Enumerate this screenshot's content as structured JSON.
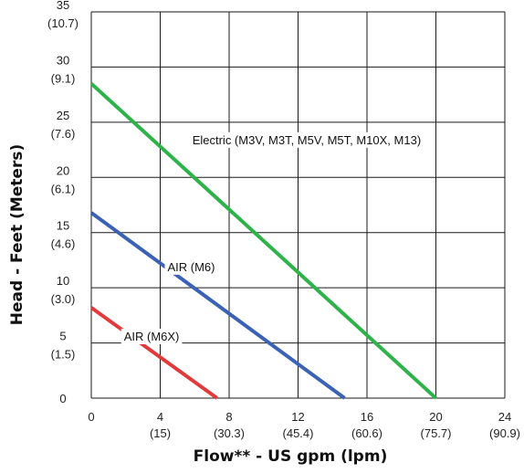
{
  "chart_data": {
    "type": "line",
    "title": "",
    "xlabel": "Flow** - US gpm (lpm)",
    "ylabel": "Head - Feet (Meters)",
    "xlim": [
      0,
      24
    ],
    "ylim": [
      0,
      35
    ],
    "grid": true,
    "x_ticks": [
      {
        "value": 0,
        "primary": "0",
        "secondary": ""
      },
      {
        "value": 4,
        "primary": "4",
        "secondary": "(15)"
      },
      {
        "value": 8,
        "primary": "8",
        "secondary": "(30.3)"
      },
      {
        "value": 12,
        "primary": "12",
        "secondary": "(45.4)"
      },
      {
        "value": 16,
        "primary": "16",
        "secondary": "(60.6)"
      },
      {
        "value": 20,
        "primary": "20",
        "secondary": "(75.7)"
      },
      {
        "value": 24,
        "primary": "24",
        "secondary": "(90.9)"
      }
    ],
    "y_ticks": [
      {
        "value": 0,
        "primary": "0",
        "secondary": ""
      },
      {
        "value": 5,
        "primary": "5",
        "secondary": "(1.5)"
      },
      {
        "value": 10,
        "primary": "10",
        "secondary": "(3.0)"
      },
      {
        "value": 15,
        "primary": "15",
        "secondary": "(4.6)"
      },
      {
        "value": 20,
        "primary": "20",
        "secondary": "(6.1)"
      },
      {
        "value": 25,
        "primary": "25",
        "secondary": "(7.6)"
      },
      {
        "value": 30,
        "primary": "30",
        "secondary": "(9.1)"
      },
      {
        "value": 35,
        "primary": "35",
        "secondary": "(10.7)"
      }
    ],
    "series": [
      {
        "name": "Electric (M3V, M3T, M5V, M5T, M10X, M13)",
        "color": "#2db34a",
        "x": [
          0,
          20
        ],
        "y": [
          28.5,
          0
        ],
        "label_at": [
          12.5,
          23.3
        ]
      },
      {
        "name": "AIR  (M6)",
        "color": "#3b62b4",
        "x": [
          0,
          14.7
        ],
        "y": [
          16.8,
          0
        ],
        "label_at": [
          5.8,
          11.8
        ]
      },
      {
        "name": "AIR (M6X)",
        "color": "#e03a3a",
        "x": [
          0,
          7.3
        ],
        "y": [
          8.2,
          0
        ],
        "label_at": [
          3.5,
          5.5
        ]
      }
    ]
  }
}
